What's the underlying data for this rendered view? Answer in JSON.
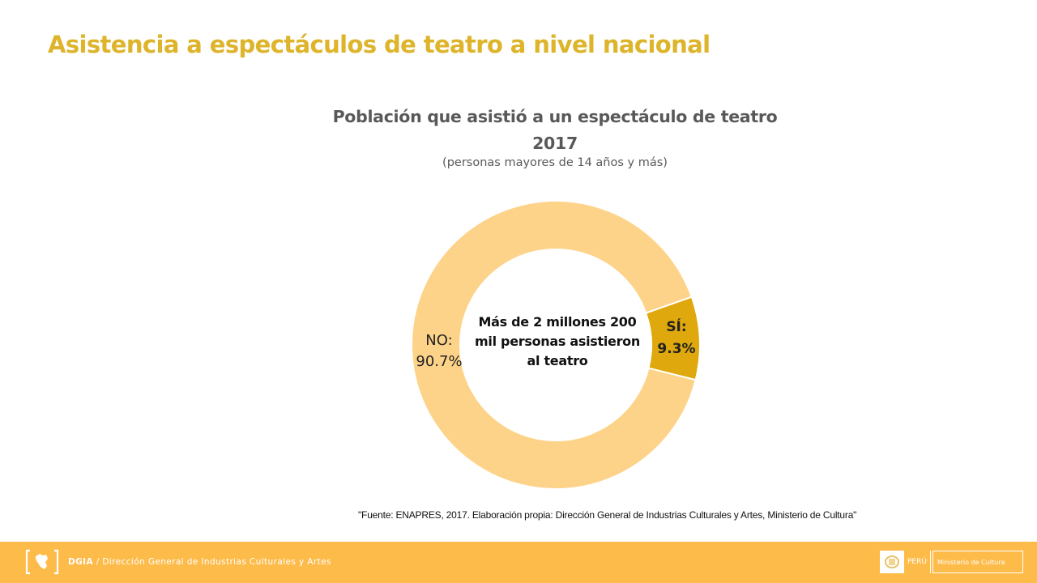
{
  "slide": {
    "title": "Asistencia a espectáculos de teatro a nivel nacional",
    "source_note": "\"Fuente: ENAPRES,  2017. Elaboración propia: Dirección General de Industrias Culturales y Artes, Ministerio de Cultura\""
  },
  "footer": {
    "logo_icon": "peru-map-bracket-icon",
    "org_abbr": "DGIA",
    "separator": " / ",
    "org_name": "Dirección General de Industrias Culturales y Artes",
    "badge_crest_icon": "peru-coat-of-arms-icon",
    "badge_country": "PERÚ",
    "badge_ministry": "Ministerio de Cultura"
  },
  "colors": {
    "title": "#DDB42A",
    "no_slice": "#FDD389",
    "si_slice": "#DFA80C",
    "footer_bg": "#FDBB4A"
  },
  "chart_data": {
    "type": "pie",
    "variant": "donut",
    "title": "Población que asistió a un espectáculo de teatro 2017",
    "subtitle": "(personas mayores de 14 años y más)",
    "center_label": "Más de 2 millones 200 mil personas asistieron al teatro",
    "unit": "%",
    "slices": [
      {
        "name": "NO",
        "value": 90.7,
        "label_line1": "NO:",
        "label_line2": "90.7%",
        "color": "#FDD389"
      },
      {
        "name": "SÍ",
        "value": 9.3,
        "label_line1": "SÍ:",
        "label_line2": "9.3%",
        "color": "#DFA80C"
      }
    ],
    "legend": "none"
  }
}
